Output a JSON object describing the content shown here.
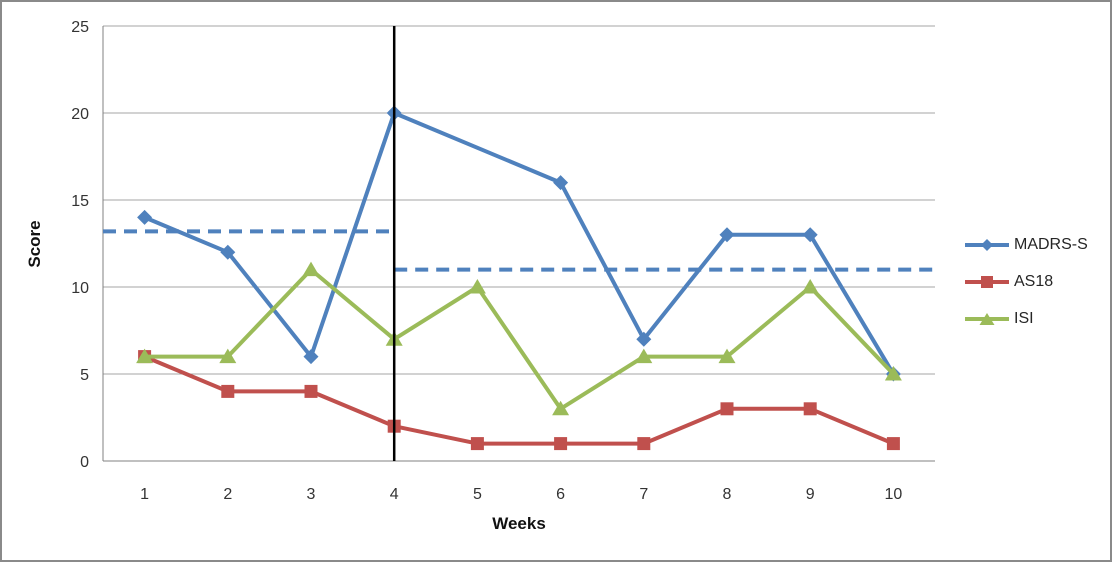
{
  "chart_data": {
    "type": "line",
    "title": "",
    "xlabel": "Weeks",
    "ylabel": "Score",
    "categories": [
      1,
      2,
      3,
      4,
      5,
      6,
      7,
      8,
      9,
      10
    ],
    "xticks": [
      "1",
      "2",
      "3",
      "4",
      "5",
      "6",
      "7",
      "8",
      "9",
      "10"
    ],
    "yticks": [
      0,
      5,
      10,
      15,
      20,
      25
    ],
    "ylim": [
      0,
      25
    ],
    "grid": "horizontal",
    "legend_position": "right",
    "series": [
      {
        "name": "MADRS-S",
        "color": "#4F81BD",
        "marker": "diamond",
        "values": [
          14,
          12,
          6,
          20,
          null,
          16,
          7,
          13,
          13,
          5
        ]
      },
      {
        "name": "AS18",
        "color": "#C0504D",
        "marker": "square",
        "values": [
          6,
          4,
          4,
          2,
          1,
          1,
          1,
          3,
          3,
          1
        ]
      },
      {
        "name": "ISI",
        "color": "#9BBB59",
        "marker": "triangle",
        "values": [
          6,
          6,
          11,
          7,
          10,
          3,
          6,
          6,
          10,
          5
        ]
      }
    ],
    "reference_lines": [
      {
        "orientation": "horizontal",
        "style": "dashed",
        "y": 13.2,
        "x_from": 0.5,
        "x_to": 4,
        "color": "#4F81BD"
      },
      {
        "orientation": "horizontal",
        "style": "dashed",
        "y": 11,
        "x_from": 4,
        "x_to": 10.5,
        "color": "#4F81BD"
      },
      {
        "orientation": "vertical",
        "style": "solid",
        "x": 4,
        "color": "#000000"
      }
    ],
    "colors": {
      "gridline": "#A6A6A6",
      "axis_line": "#808080",
      "frame_border": "#8A8A8A"
    }
  }
}
